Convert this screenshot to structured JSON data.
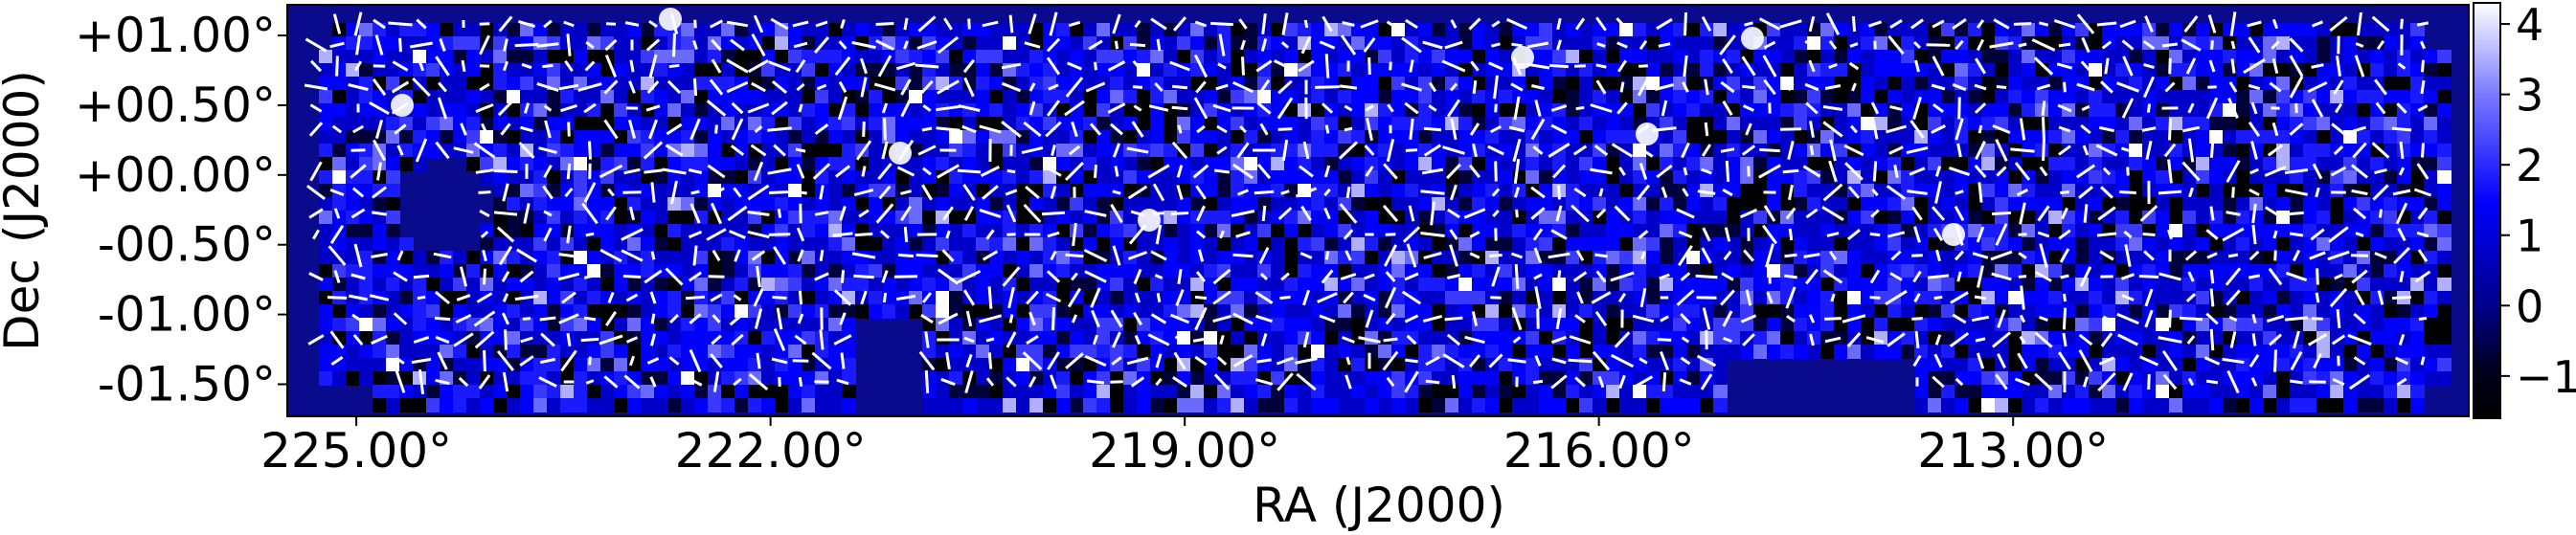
{
  "chart_data": {
    "type": "heatmap",
    "title": "",
    "xlabel": "RA (J2000)",
    "ylabel": "Dec (J2000)",
    "x_axis": {
      "direction": "decreasing",
      "range": [
        225.5,
        209.7
      ],
      "ticks": [
        225.0,
        222.0,
        219.0,
        216.0,
        213.0
      ],
      "tick_labels": [
        "225.00°",
        "222.00°",
        "219.00°",
        "216.00°",
        "213.00°"
      ]
    },
    "y_axis": {
      "range": [
        -1.73,
        1.22
      ],
      "ticks": [
        1.0,
        0.5,
        0.0,
        -0.5,
        -1.0,
        -1.5
      ],
      "tick_labels": [
        "+01.00°",
        "+00.50°",
        "+00.00°",
        "-00.50°",
        "-01.00°",
        "-01.50°"
      ]
    },
    "colorbar": {
      "range": [
        -1.6,
        4.3
      ],
      "ticks": [
        4,
        3,
        2,
        1,
        0,
        -1
      ],
      "tick_labels": [
        "4",
        "3",
        "2",
        "1",
        "0",
        "−1"
      ],
      "colormap": [
        "#000000",
        "#00008a",
        "#0000ff",
        "#7a7aff",
        "#ffffff"
      ]
    },
    "background_color": "#0a0a8c",
    "overlay": "white polarization vectors over the survey footprint",
    "grid": false
  },
  "colors": {
    "field": "#0a0a8c",
    "vector": "#ffffff"
  }
}
